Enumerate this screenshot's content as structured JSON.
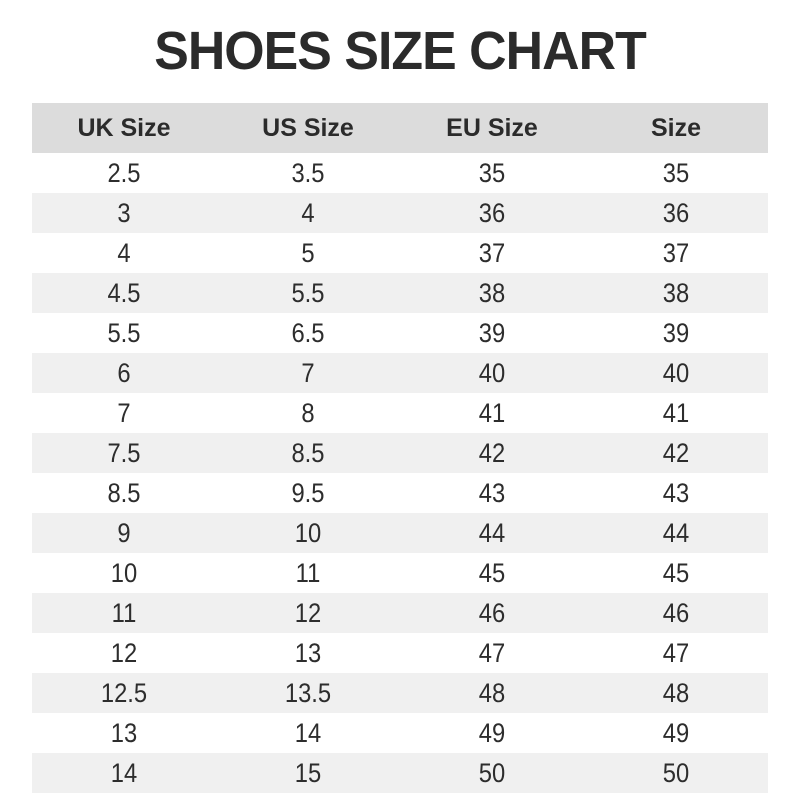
{
  "chart_data": {
    "type": "table",
    "title": "SHOES SIZE CHART",
    "columns": [
      "UK Size",
      "US Size",
      "EU Size",
      "Size"
    ],
    "rows": [
      [
        "2.5",
        "3.5",
        "35",
        "35"
      ],
      [
        "3",
        "4",
        "36",
        "36"
      ],
      [
        "4",
        "5",
        "37",
        "37"
      ],
      [
        "4.5",
        "5.5",
        "38",
        "38"
      ],
      [
        "5.5",
        "6.5",
        "39",
        "39"
      ],
      [
        "6",
        "7",
        "40",
        "40"
      ],
      [
        "7",
        "8",
        "41",
        "41"
      ],
      [
        "7.5",
        "8.5",
        "42",
        "42"
      ],
      [
        "8.5",
        "9.5",
        "43",
        "43"
      ],
      [
        "9",
        "10",
        "44",
        "44"
      ],
      [
        "10",
        "11",
        "45",
        "45"
      ],
      [
        "11",
        "12",
        "46",
        "46"
      ],
      [
        "12",
        "13",
        "47",
        "47"
      ],
      [
        "12.5",
        "13.5",
        "48",
        "48"
      ],
      [
        "13",
        "14",
        "49",
        "49"
      ],
      [
        "14",
        "15",
        "50",
        "50"
      ]
    ],
    "layout": {
      "striped": true,
      "stripe_pattern": "even-rows-shaded",
      "header_position": "top",
      "column_alignment": "center"
    }
  },
  "colors": {
    "page_bg": "#ffffff",
    "header_bg": "#dcdcdc",
    "row_stripe_bg": "#f0f0f0",
    "title_text": "#2b2b2b",
    "body_text": "#2d2d2d"
  }
}
